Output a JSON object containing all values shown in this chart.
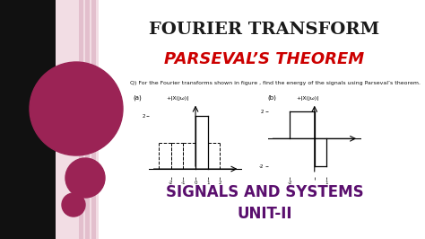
{
  "bg_color": "#ffffff",
  "left_bg_color": "#f2dde4",
  "stripe_colors": [
    "#e8c8d2",
    "#e0bcc8",
    "#d8b0be"
  ],
  "circle1_color": "#9b2355",
  "circle2_color": "#9b2355",
  "circle3_color": "#9b2355",
  "title1": "Fourier transform",
  "title2": "Parseval’s theorem",
  "title1_color": "#1a1a1a",
  "title2_color": "#cc0000",
  "question_text": "Q) For the Fourier transforms shown in figure , find the energy of the signals using Parseval’s theorem.",
  "label_a": "(a)",
  "label_b": "(b)",
  "graph_label_a": "+|X(jω)|",
  "graph_label_b": "+|X(jω)|",
  "subtitle1": "Signals and Systems",
  "subtitle2": "Unit-II",
  "subtitle_color": "#5a0f6e"
}
